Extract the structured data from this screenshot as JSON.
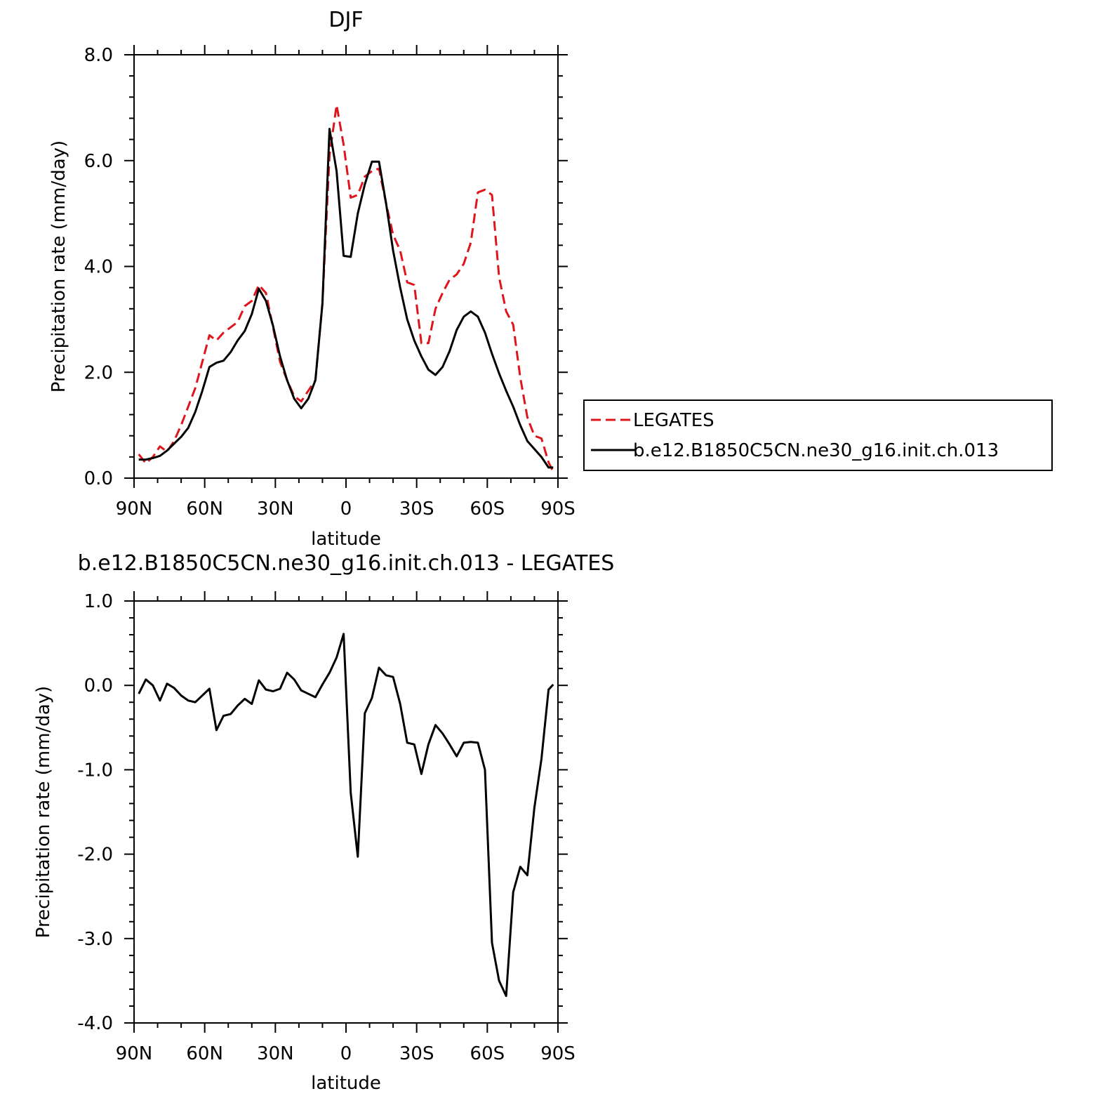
{
  "chart_data": [
    {
      "type": "line",
      "title": "DJF",
      "xlabel": "latitude",
      "ylabel": "Precipitation rate (mm/day)",
      "ylim": [
        0,
        8
      ],
      "yticks": [
        "0.0",
        "2.0",
        "4.0",
        "6.0",
        "8.0"
      ],
      "xlim": [
        -89,
        89
      ],
      "xtick_labels": [
        "90N",
        "60N",
        "30N",
        "0",
        "30S",
        "60S",
        "90S"
      ],
      "legend": "right",
      "series": [
        {
          "name": "LEGATES",
          "color": "#e0141b",
          "dash": "dashed",
          "x": [
            -88,
            -85,
            -82,
            -79,
            -76,
            -73,
            -70,
            -67,
            -64,
            -61,
            -58,
            -55,
            -52,
            -49,
            -46,
            -43,
            -40,
            -37,
            -34,
            -31,
            -28,
            -25,
            -22,
            -19,
            -16,
            -13,
            -10,
            -7,
            -4,
            -1,
            2,
            5,
            8,
            11,
            14,
            17,
            20,
            23,
            26,
            29,
            32,
            35,
            38,
            41,
            44,
            47,
            50,
            53,
            56,
            59,
            62,
            65,
            68,
            71,
            74,
            77,
            80,
            83,
            86,
            88
          ],
          "y": [
            0.45,
            0.28,
            0.4,
            0.6,
            0.5,
            0.7,
            1.0,
            1.35,
            1.7,
            2.2,
            2.7,
            2.6,
            2.75,
            2.85,
            2.95,
            3.25,
            3.35,
            3.65,
            3.5,
            2.85,
            2.2,
            1.85,
            1.55,
            1.45,
            1.65,
            1.85,
            3.3,
            6.1,
            7.05,
            6.3,
            5.3,
            5.35,
            5.7,
            5.8,
            5.85,
            5.2,
            4.6,
            4.3,
            3.7,
            3.65,
            2.55,
            2.55,
            3.2,
            3.5,
            3.75,
            3.85,
            4.05,
            4.45,
            5.4,
            5.45,
            5.35,
            3.8,
            3.15,
            2.9,
            1.9,
            1.15,
            0.8,
            0.75,
            0.3,
            0.12
          ]
        },
        {
          "name": "b.e12.B1850C5CN.ne30_g16.init.ch.013",
          "color": "#000000",
          "dash": "solid",
          "x": [
            -88,
            -85,
            -82,
            -79,
            -76,
            -73,
            -70,
            -67,
            -64,
            -61,
            -58,
            -55,
            -52,
            -49,
            -46,
            -43,
            -40,
            -37,
            -34,
            -31,
            -28,
            -25,
            -22,
            -19,
            -16,
            -13,
            -10,
            -7,
            -4,
            -1,
            2,
            5,
            8,
            11,
            14,
            17,
            20,
            23,
            26,
            29,
            32,
            35,
            38,
            41,
            44,
            47,
            50,
            53,
            56,
            59,
            62,
            65,
            68,
            71,
            74,
            77,
            80,
            83,
            86,
            88
          ],
          "y": [
            0.35,
            0.35,
            0.38,
            0.42,
            0.52,
            0.65,
            0.78,
            0.95,
            1.25,
            1.65,
            2.1,
            2.18,
            2.22,
            2.38,
            2.6,
            2.78,
            3.1,
            3.58,
            3.35,
            2.88,
            2.3,
            1.85,
            1.5,
            1.32,
            1.5,
            1.85,
            3.3,
            6.6,
            5.8,
            4.2,
            4.18,
            5.0,
            5.55,
            5.98,
            5.98,
            5.2,
            4.3,
            3.6,
            3.0,
            2.6,
            2.3,
            2.05,
            1.95,
            2.1,
            2.4,
            2.8,
            3.05,
            3.15,
            3.05,
            2.75,
            2.35,
            1.98,
            1.65,
            1.35,
            1.0,
            0.7,
            0.55,
            0.4,
            0.2,
            0.2
          ]
        }
      ]
    },
    {
      "type": "line",
      "title": "b.e12.B1850C5CN.ne30_g16.init.ch.013 - LEGATES",
      "xlabel": "latitude",
      "ylabel": "Precipitation rate (mm/day)",
      "ylim": [
        -4,
        1
      ],
      "yticks": [
        "-4.0",
        "-3.0",
        "-2.0",
        "-1.0",
        "0.0",
        "1.0"
      ],
      "xlim": [
        -89,
        89
      ],
      "xtick_labels": [
        "90N",
        "60N",
        "30N",
        "0",
        "30S",
        "60S",
        "90S"
      ],
      "series": [
        {
          "color": "#000000",
          "dash": "solid",
          "x": [
            -88,
            -85,
            -82,
            -79,
            -76,
            -73,
            -70,
            -67,
            -64,
            -61,
            -58,
            -55,
            -52,
            -49,
            -46,
            -43,
            -40,
            -37,
            -34,
            -31,
            -28,
            -25,
            -22,
            -19,
            -16,
            -13,
            -10,
            -7,
            -4,
            -1,
            2,
            5,
            8,
            11,
            14,
            17,
            20,
            23,
            26,
            29,
            32,
            35,
            38,
            41,
            44,
            47,
            50,
            53,
            56,
            59,
            62,
            65,
            68,
            71,
            74,
            77,
            80,
            83,
            86,
            88
          ],
          "y": [
            -0.1,
            0.07,
            0.0,
            -0.18,
            0.02,
            -0.03,
            -0.12,
            -0.18,
            -0.2,
            -0.12,
            -0.04,
            -0.53,
            -0.36,
            -0.34,
            -0.24,
            -0.16,
            -0.22,
            0.06,
            -0.05,
            -0.07,
            -0.04,
            0.15,
            0.07,
            -0.06,
            -0.1,
            -0.14,
            0.01,
            0.15,
            0.33,
            0.61,
            -1.27,
            -2.03,
            -0.33,
            -0.15,
            0.21,
            0.12,
            0.1,
            -0.22,
            -0.68,
            -0.7,
            -1.05,
            -0.7,
            -0.47,
            -0.57,
            -0.7,
            -0.84,
            -0.68,
            -0.67,
            -0.68,
            -1.0,
            -3.05,
            -3.5,
            -3.68,
            -2.45,
            -2.15,
            -2.25,
            -1.45,
            -0.87,
            -0.05,
            0.01
          ]
        }
      ]
    }
  ]
}
